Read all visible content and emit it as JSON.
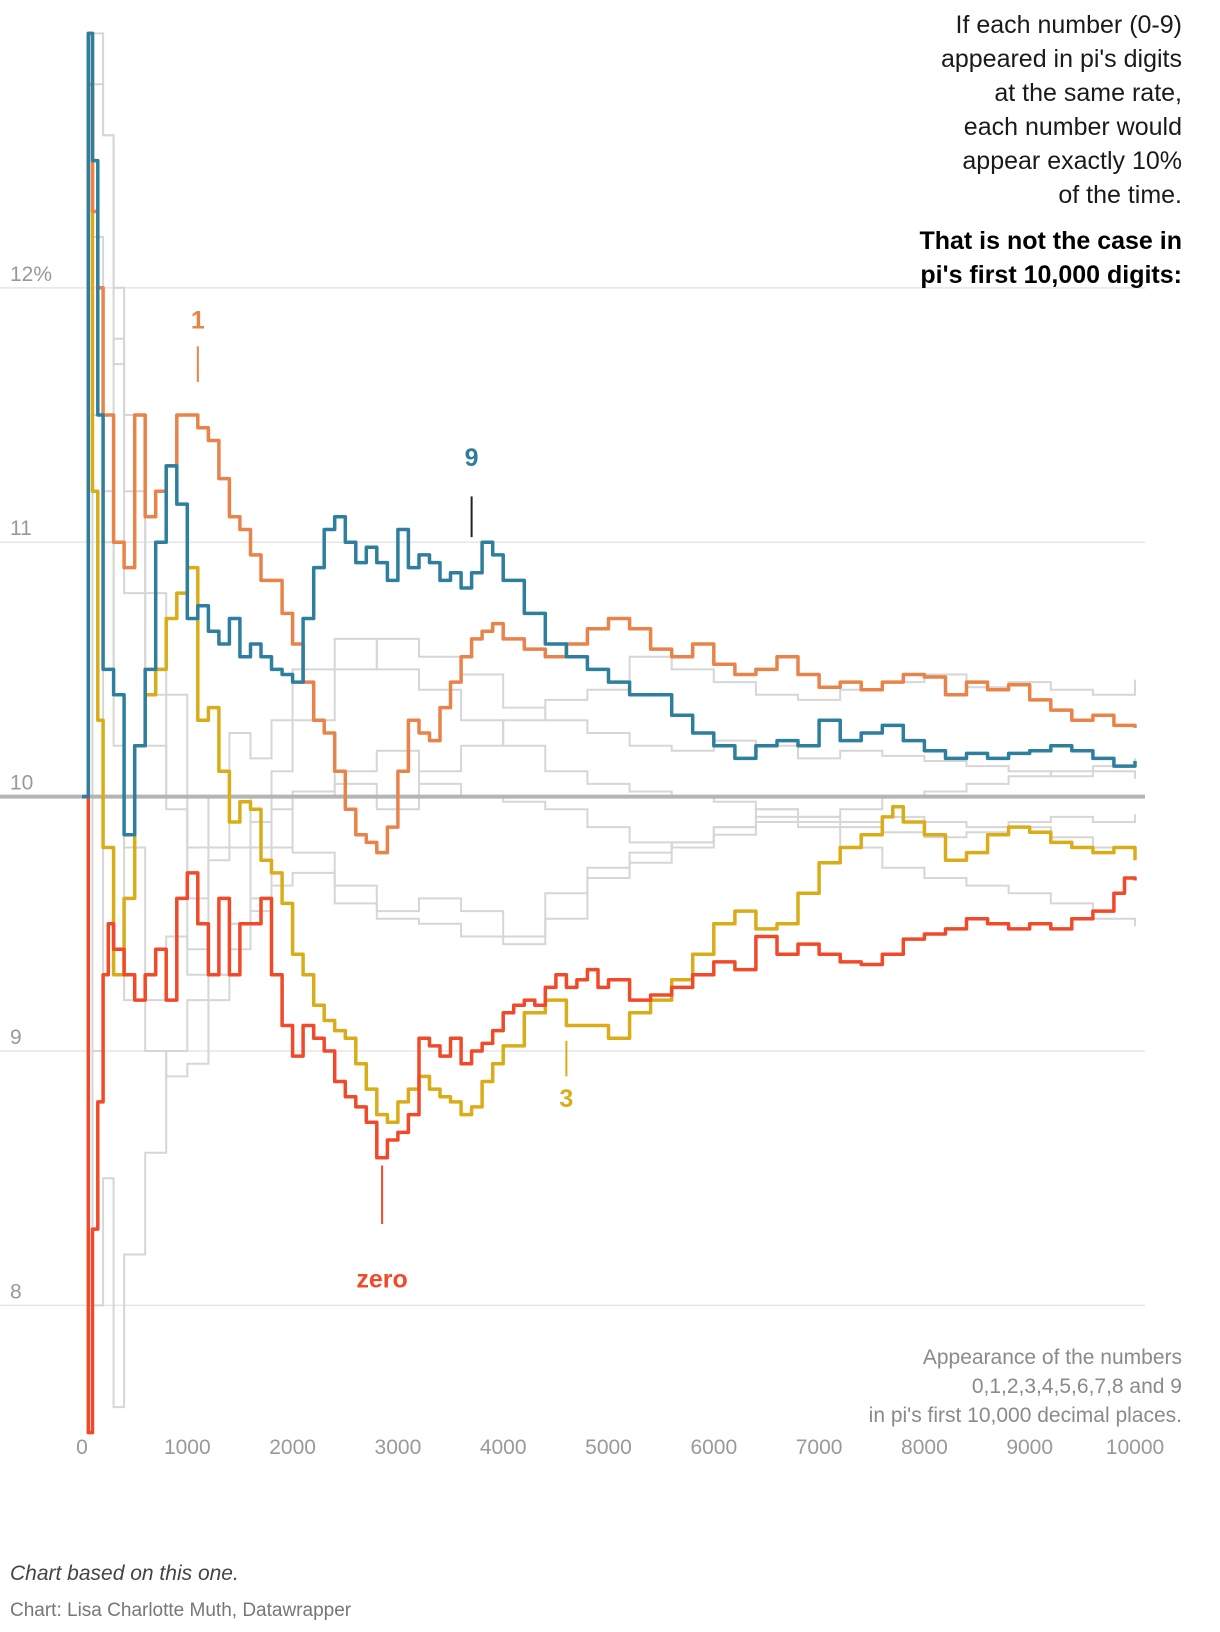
{
  "intro": {
    "line1": "If each number (0-9)",
    "line2": "appeared in pi's digits",
    "line3": "at the same rate,",
    "line4": "each number would",
    "line5": "appear exactly 10%",
    "line6": "of the time.",
    "bold1": "That is not the case in",
    "bold2": "pi's first 10,000 digits:"
  },
  "note": {
    "line1": "Appearance of the numbers",
    "line2": "0,1,2,3,4,5,6,7,8 and 9",
    "line3": "in pi's first 10,000 decimal places."
  },
  "footer": {
    "based_on": "Chart based on this one.",
    "credit": "Chart: Lisa Charlotte Muth, Datawrapper"
  },
  "colors": {
    "zero": "#f04a2a",
    "one": "#e8834a",
    "three": "#d9ad1a",
    "nine": "#2e7f9e",
    "others": "#d6d6d6",
    "reference": "#b5b5b5",
    "grid": "#e6e6e6"
  },
  "chart_data": {
    "type": "line",
    "title": "If each number (0-9) appeared in pi's digits at the same rate, each number would appear exactly 10% of the time.",
    "xlabel": "",
    "ylabel": "",
    "xlim": [
      0,
      10000
    ],
    "ylim": [
      7.4,
      13.1
    ],
    "x_ticks": [
      0,
      1000,
      2000,
      3000,
      4000,
      5000,
      6000,
      7000,
      8000,
      9000,
      10000
    ],
    "x_tick_labels": [
      "0",
      "1000",
      "2000",
      "3000",
      "4000",
      "5000",
      "6000",
      "7000",
      "8000",
      "9000",
      "10000"
    ],
    "y_ticks": [
      8,
      9,
      10,
      11,
      12
    ],
    "y_tick_labels": [
      "8",
      "9",
      "10",
      "11",
      "12%"
    ],
    "reference_line": 10,
    "series": [
      {
        "name": "zero",
        "label": "zero",
        "highlight": true,
        "x": [
          0,
          60,
          100,
          150,
          200,
          250,
          300,
          400,
          500,
          600,
          700,
          800,
          900,
          1000,
          1100,
          1200,
          1300,
          1400,
          1500,
          1600,
          1700,
          1800,
          1900,
          2000,
          2100,
          2200,
          2300,
          2400,
          2500,
          2600,
          2700,
          2800,
          2900,
          3000,
          3100,
          3200,
          3300,
          3400,
          3500,
          3600,
          3700,
          3800,
          3900,
          4000,
          4100,
          4200,
          4300,
          4400,
          4500,
          4600,
          4700,
          4800,
          4900,
          5000,
          5200,
          5400,
          5600,
          5800,
          6000,
          6200,
          6400,
          6600,
          6800,
          7000,
          7200,
          7400,
          7600,
          7800,
          8000,
          8200,
          8400,
          8600,
          8800,
          9000,
          9200,
          9400,
          9600,
          9800,
          9900,
          10000
        ],
        "y": [
          10.0,
          7.5,
          8.3,
          8.8,
          9.3,
          9.5,
          9.4,
          9.3,
          9.2,
          9.3,
          9.4,
          9.2,
          9.6,
          9.7,
          9.5,
          9.3,
          9.6,
          9.3,
          9.5,
          9.5,
          9.6,
          9.3,
          9.1,
          8.98,
          9.1,
          9.05,
          9.0,
          8.88,
          8.82,
          8.78,
          8.72,
          8.58,
          8.65,
          8.68,
          8.75,
          9.05,
          9.02,
          8.98,
          9.05,
          8.95,
          9.0,
          9.03,
          9.08,
          9.15,
          9.18,
          9.2,
          9.18,
          9.25,
          9.3,
          9.25,
          9.28,
          9.32,
          9.25,
          9.28,
          9.2,
          9.22,
          9.25,
          9.3,
          9.35,
          9.32,
          9.45,
          9.38,
          9.42,
          9.38,
          9.35,
          9.34,
          9.38,
          9.44,
          9.46,
          9.48,
          9.52,
          9.5,
          9.48,
          9.5,
          9.48,
          9.52,
          9.55,
          9.62,
          9.68,
          9.67
        ]
      },
      {
        "name": "1",
        "label": "1",
        "highlight": true,
        "x": [
          0,
          60,
          100,
          150,
          200,
          300,
          400,
          500,
          600,
          700,
          800,
          900,
          1000,
          1100,
          1200,
          1300,
          1400,
          1500,
          1600,
          1700,
          1800,
          1900,
          2000,
          2100,
          2200,
          2300,
          2400,
          2500,
          2600,
          2700,
          2800,
          2900,
          3000,
          3100,
          3200,
          3300,
          3400,
          3500,
          3600,
          3700,
          3800,
          3900,
          4000,
          4200,
          4400,
          4600,
          4800,
          5000,
          5200,
          5400,
          5600,
          5800,
          6000,
          6200,
          6400,
          6600,
          6800,
          7000,
          7200,
          7400,
          7600,
          7800,
          8000,
          8200,
          8400,
          8600,
          8800,
          9000,
          9200,
          9400,
          9600,
          9800,
          10000
        ],
        "y": [
          10.0,
          13.0,
          12.3,
          12.0,
          11.5,
          11.0,
          10.9,
          11.5,
          11.1,
          11.2,
          11.3,
          11.5,
          11.5,
          11.45,
          11.4,
          11.25,
          11.1,
          11.05,
          10.95,
          10.85,
          10.85,
          10.72,
          10.6,
          10.45,
          10.3,
          10.25,
          10.1,
          9.95,
          9.85,
          9.82,
          9.78,
          9.88,
          10.1,
          10.3,
          10.25,
          10.22,
          10.35,
          10.45,
          10.55,
          10.62,
          10.65,
          10.68,
          10.62,
          10.58,
          10.55,
          10.6,
          10.66,
          10.7,
          10.66,
          10.58,
          10.55,
          10.6,
          10.52,
          10.48,
          10.5,
          10.55,
          10.48,
          10.43,
          10.45,
          10.42,
          10.45,
          10.48,
          10.47,
          10.4,
          10.45,
          10.42,
          10.44,
          10.38,
          10.34,
          10.3,
          10.32,
          10.28,
          10.27
        ]
      },
      {
        "name": "3",
        "label": "3",
        "highlight": true,
        "x": [
          0,
          60,
          100,
          150,
          200,
          300,
          400,
          500,
          600,
          700,
          800,
          900,
          1000,
          1100,
          1200,
          1300,
          1400,
          1500,
          1600,
          1700,
          1800,
          1900,
          2000,
          2100,
          2200,
          2300,
          2400,
          2500,
          2600,
          2700,
          2800,
          2900,
          3000,
          3100,
          3200,
          3300,
          3400,
          3500,
          3600,
          3700,
          3800,
          3900,
          4000,
          4200,
          4400,
          4600,
          4800,
          5000,
          5200,
          5400,
          5600,
          5800,
          6000,
          6200,
          6400,
          6600,
          6800,
          7000,
          7200,
          7400,
          7600,
          7700,
          7800,
          8000,
          8200,
          8400,
          8600,
          8800,
          9000,
          9200,
          9400,
          9600,
          9800,
          10000
        ],
        "y": [
          10.0,
          12.8,
          11.2,
          10.3,
          9.8,
          9.3,
          9.6,
          10.2,
          10.4,
          10.5,
          10.7,
          10.8,
          10.9,
          10.3,
          10.35,
          10.1,
          9.9,
          9.98,
          9.95,
          9.75,
          9.7,
          9.58,
          9.38,
          9.3,
          9.18,
          9.12,
          9.08,
          9.05,
          8.95,
          8.85,
          8.75,
          8.72,
          8.8,
          8.85,
          8.9,
          8.85,
          8.82,
          8.8,
          8.75,
          8.78,
          8.88,
          8.95,
          9.02,
          9.15,
          9.2,
          9.1,
          9.1,
          9.05,
          9.15,
          9.2,
          9.28,
          9.38,
          9.5,
          9.55,
          9.48,
          9.5,
          9.62,
          9.74,
          9.8,
          9.85,
          9.92,
          9.96,
          9.9,
          9.85,
          9.75,
          9.78,
          9.85,
          9.88,
          9.86,
          9.82,
          9.8,
          9.78,
          9.8,
          9.75
        ]
      },
      {
        "name": "9",
        "label": "9",
        "highlight": true,
        "x": [
          0,
          60,
          100,
          150,
          200,
          300,
          400,
          500,
          600,
          700,
          800,
          900,
          1000,
          1100,
          1200,
          1300,
          1400,
          1500,
          1600,
          1700,
          1800,
          1900,
          2000,
          2100,
          2200,
          2300,
          2400,
          2500,
          2600,
          2700,
          2800,
          2900,
          3000,
          3100,
          3200,
          3300,
          3400,
          3500,
          3600,
          3700,
          3800,
          3900,
          4000,
          4200,
          4400,
          4600,
          4800,
          5000,
          5200,
          5400,
          5600,
          5800,
          6000,
          6200,
          6400,
          6600,
          6800,
          7000,
          7200,
          7400,
          7600,
          7800,
          8000,
          8200,
          8400,
          8600,
          8800,
          9000,
          9200,
          9400,
          9600,
          9800,
          10000
        ],
        "y": [
          10.0,
          13.0,
          12.5,
          11.5,
          10.5,
          10.4,
          9.85,
          10.2,
          10.5,
          11.0,
          11.3,
          11.15,
          10.7,
          10.75,
          10.65,
          10.6,
          10.7,
          10.55,
          10.6,
          10.55,
          10.5,
          10.48,
          10.45,
          10.7,
          10.9,
          11.05,
          11.1,
          11.0,
          10.92,
          10.98,
          10.92,
          10.85,
          11.05,
          10.9,
          10.95,
          10.92,
          10.85,
          10.88,
          10.82,
          10.88,
          11.0,
          10.95,
          10.85,
          10.72,
          10.6,
          10.55,
          10.5,
          10.45,
          10.4,
          10.4,
          10.32,
          10.25,
          10.2,
          10.15,
          10.2,
          10.22,
          10.2,
          10.3,
          10.22,
          10.25,
          10.28,
          10.22,
          10.18,
          10.15,
          10.17,
          10.15,
          10.17,
          10.18,
          10.2,
          10.18,
          10.15,
          10.12,
          10.14
        ]
      },
      {
        "name": "2",
        "label": "",
        "highlight": false,
        "x": [
          0,
          100,
          200,
          300,
          400,
          600,
          800,
          1000,
          1200,
          1400,
          1600,
          1800,
          2000,
          2400,
          2800,
          3200,
          3600,
          4000,
          4400,
          4800,
          5200,
          5600,
          6000,
          6400,
          6800,
          7200,
          7600,
          8000,
          8400,
          8800,
          9200,
          9600,
          10000
        ],
        "y": [
          10.0,
          12.8,
          12.6,
          12.0,
          11.2,
          10.4,
          10.0,
          9.4,
          9.3,
          9.5,
          9.8,
          10.1,
          10.3,
          10.5,
          10.62,
          10.55,
          10.48,
          10.35,
          10.3,
          10.25,
          10.2,
          10.18,
          10.22,
          10.2,
          10.15,
          10.18,
          10.16,
          10.14,
          10.12,
          10.1,
          10.08,
          10.1,
          10.07
        ]
      },
      {
        "name": "4",
        "label": "",
        "highlight": false,
        "x": [
          0,
          100,
          200,
          300,
          400,
          600,
          800,
          1000,
          1200,
          1400,
          1600,
          1800,
          2000,
          2400,
          2800,
          3200,
          3600,
          4000,
          4400,
          4800,
          5200,
          5600,
          6000,
          6400,
          6800,
          7200,
          7600,
          8000,
          8400,
          8800,
          9200,
          9600,
          10000
        ],
        "y": [
          10.0,
          12.2,
          11.2,
          10.4,
          9.8,
          9.2,
          9.45,
          9.3,
          9.8,
          10.0,
          9.9,
          9.8,
          9.78,
          9.65,
          9.55,
          9.6,
          9.55,
          9.45,
          9.62,
          9.72,
          9.78,
          9.82,
          9.88,
          9.92,
          9.9,
          9.88,
          9.86,
          9.84,
          9.86,
          9.88,
          9.84,
          9.8,
          9.78
        ]
      },
      {
        "name": "5",
        "label": "",
        "highlight": false,
        "x": [
          0,
          100,
          200,
          300,
          400,
          600,
          800,
          1000,
          1200,
          1400,
          1600,
          1800,
          2000,
          2400,
          2800,
          3200,
          3600,
          4000,
          4400,
          4800,
          5200,
          5600,
          6000,
          6400,
          6800,
          7200,
          7600,
          8000,
          8400,
          8800,
          9200,
          9600,
          10000
        ],
        "y": [
          10.0,
          9.0,
          10.5,
          11.8,
          11.5,
          10.8,
          10.4,
          9.8,
          10.0,
          10.25,
          10.15,
          10.3,
          10.5,
          10.62,
          10.5,
          10.42,
          10.3,
          10.2,
          10.1,
          10.05,
          10.02,
          10.0,
          9.98,
          9.95,
          9.92,
          9.9,
          9.92,
          9.9,
          9.88,
          9.9,
          9.92,
          9.9,
          9.93
        ]
      },
      {
        "name": "6",
        "label": "",
        "highlight": false,
        "x": [
          0,
          100,
          200,
          300,
          400,
          600,
          800,
          1000,
          1200,
          1400,
          1600,
          1800,
          2000,
          2400,
          2800,
          3200,
          3600,
          4000,
          4400,
          4800,
          5200,
          5600,
          6000,
          6400,
          6800,
          7200,
          7600,
          8000,
          8400,
          8800,
          9200,
          9600,
          10000
        ],
        "y": [
          10.0,
          8.0,
          8.5,
          7.6,
          8.2,
          8.6,
          9.0,
          9.2,
          9.3,
          9.5,
          9.55,
          9.65,
          9.7,
          9.58,
          9.52,
          9.5,
          9.45,
          9.42,
          9.52,
          9.68,
          9.74,
          9.82,
          9.88,
          9.95,
          9.88,
          9.8,
          9.72,
          9.68,
          9.65,
          9.62,
          9.58,
          9.52,
          9.49
        ]
      },
      {
        "name": "7",
        "label": "",
        "highlight": false,
        "x": [
          0,
          100,
          200,
          300,
          400,
          600,
          800,
          1000,
          1200,
          1400,
          1600,
          1800,
          2000,
          2400,
          2800,
          3200,
          3600,
          4000,
          4400,
          4800,
          5200,
          5600,
          6000,
          6400,
          6800,
          7200,
          7600,
          8000,
          8400,
          8800,
          9200,
          9600,
          10000
        ],
        "y": [
          10.0,
          11.5,
          11.0,
          10.2,
          9.2,
          9.0,
          8.9,
          8.95,
          9.2,
          9.4,
          9.6,
          9.8,
          10.0,
          10.05,
          9.95,
          10.1,
          10.2,
          10.3,
          10.38,
          10.42,
          10.55,
          10.5,
          10.45,
          10.4,
          10.38,
          10.42,
          10.45,
          10.48,
          10.43,
          10.45,
          10.42,
          10.4,
          10.46
        ]
      },
      {
        "name": "8",
        "label": "",
        "highlight": false,
        "x": [
          0,
          100,
          200,
          300,
          400,
          600,
          800,
          1000,
          1200,
          1400,
          1600,
          1800,
          2000,
          2400,
          2800,
          3200,
          3600,
          4000,
          4400,
          4800,
          5200,
          5600,
          6000,
          6400,
          6800,
          7200,
          7600,
          8000,
          8400,
          8800,
          9200,
          9600,
          10000
        ],
        "y": [
          10.0,
          13.0,
          12.6,
          11.7,
          10.8,
          10.2,
          9.95,
          9.6,
          9.75,
          9.8,
          9.9,
          9.95,
          10.02,
          10.1,
          10.18,
          10.05,
          10.0,
          9.98,
          9.95,
          9.88,
          9.82,
          9.8,
          9.85,
          9.9,
          9.92,
          9.95,
          10.0,
          10.02,
          10.05,
          10.08,
          10.1,
          10.12,
          10.15
        ]
      }
    ]
  }
}
